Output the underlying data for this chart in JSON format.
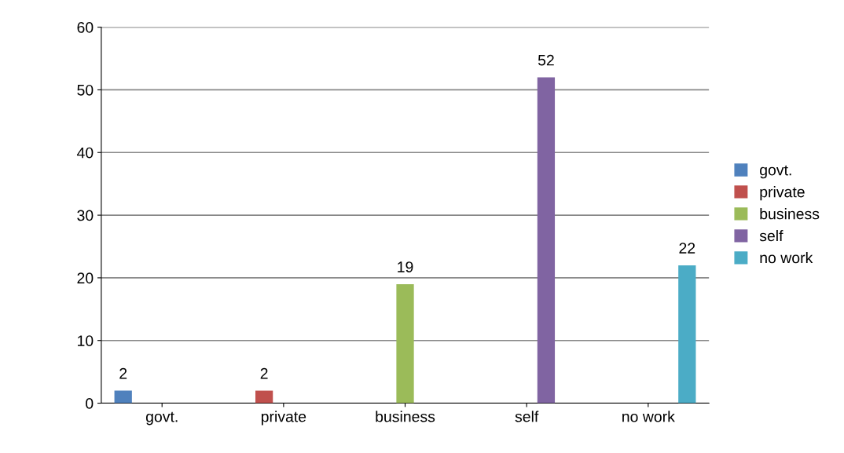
{
  "chart_data": {
    "type": "bar",
    "categories": [
      "govt.",
      "private",
      "business",
      "self",
      "no work"
    ],
    "series": [
      {
        "name": "govt.",
        "color": "#4f81bd",
        "values": [
          2,
          null,
          null,
          null,
          null
        ]
      },
      {
        "name": "private",
        "color": "#c0504d",
        "values": [
          null,
          2,
          null,
          null,
          null
        ]
      },
      {
        "name": "business",
        "color": "#9bbb59",
        "values": [
          null,
          null,
          19,
          null,
          null
        ]
      },
      {
        "name": "self",
        "color": "#8064a2",
        "values": [
          null,
          null,
          null,
          52,
          null
        ]
      },
      {
        "name": "no work",
        "color": "#4bacc6",
        "values": [
          null,
          null,
          null,
          null,
          22
        ]
      }
    ],
    "ylim": [
      0,
      60
    ],
    "yticks": [
      0,
      10,
      20,
      30,
      40,
      50,
      60
    ],
    "grid": "y",
    "legend": "right",
    "data_labels": true
  }
}
